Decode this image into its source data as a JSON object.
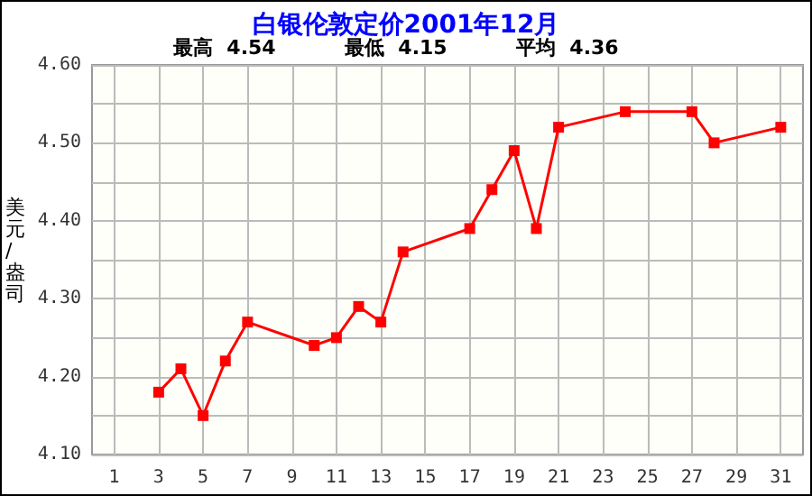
{
  "chart_data": {
    "type": "line",
    "title": "白银伦敦定价2001年12月",
    "ylabel": "美元/盎司",
    "annotations": [
      "最高  4.54",
      "最低  4.15",
      "平均  4.36"
    ],
    "x": [
      3,
      4,
      5,
      6,
      7,
      10,
      11,
      12,
      13,
      14,
      17,
      18,
      19,
      20,
      21,
      24,
      27,
      28,
      31
    ],
    "series": [
      {
        "color": "#ff0000",
        "values": [
          4.18,
          4.21,
          4.15,
          4.22,
          4.27,
          4.24,
          4.25,
          4.29,
          4.27,
          4.36,
          4.39,
          4.44,
          4.49,
          4.39,
          4.52,
          4.54,
          4.54,
          4.5,
          4.52
        ]
      }
    ],
    "xlim": [
      0,
      32
    ],
    "xticks": [
      1,
      3,
      5,
      7,
      9,
      11,
      13,
      15,
      17,
      19,
      21,
      23,
      25,
      27,
      29,
      31
    ],
    "ylim": [
      4.1,
      4.6
    ],
    "yticks": [
      {
        "value": 4.1,
        "label": "4.10"
      },
      {
        "value": 4.15,
        "label": null
      },
      {
        "value": 4.2,
        "label": "4.20"
      },
      {
        "value": 4.25,
        "label": null
      },
      {
        "value": 4.3,
        "label": "4.30"
      },
      {
        "value": 4.35,
        "label": null
      },
      {
        "value": 4.4,
        "label": "4.40"
      },
      {
        "value": 4.45,
        "label": null
      },
      {
        "value": 4.5,
        "label": "4.50"
      },
      {
        "value": 4.55,
        "label": null
      },
      {
        "value": 4.6,
        "label": "4.60"
      }
    ],
    "grid": true,
    "marker": "square",
    "line_style": "solid"
  }
}
